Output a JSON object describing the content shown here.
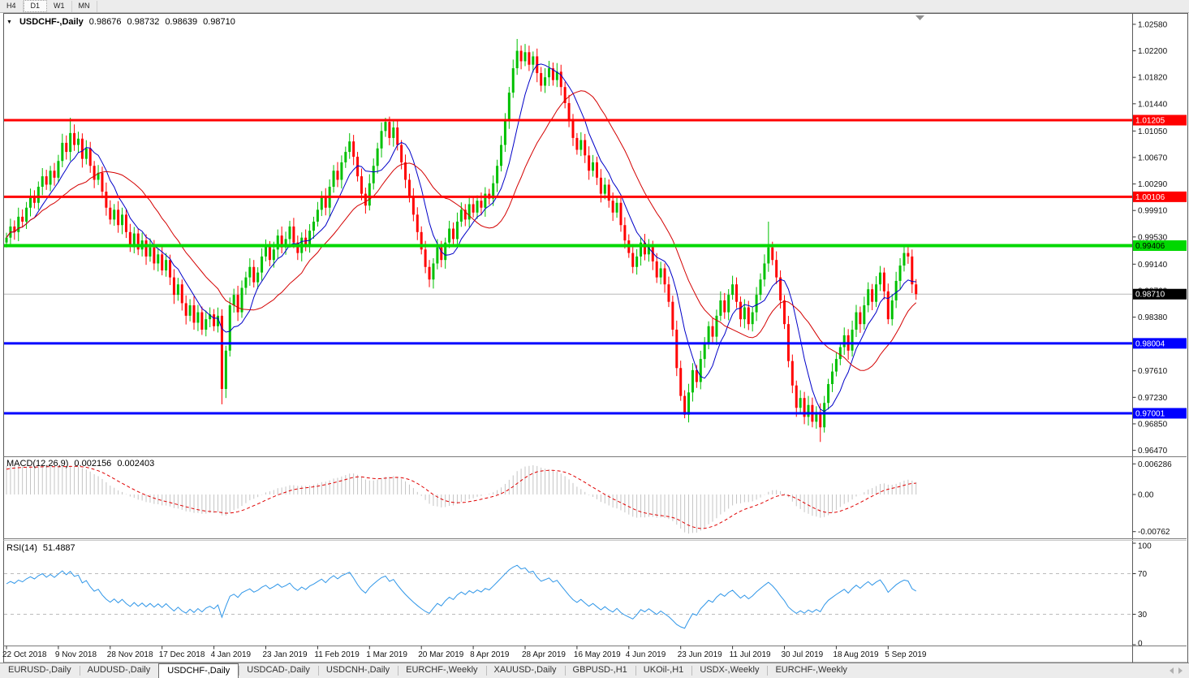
{
  "toolbar": {
    "buttons": [
      "H4",
      "D1",
      "W1",
      "MN"
    ],
    "active": "D1"
  },
  "header": {
    "symbol": "USDCHF-,Daily",
    "open": "0.98676",
    "high": "0.98732",
    "low": "0.98639",
    "close": "0.98710"
  },
  "tabs": {
    "items": [
      "EURUSD-,Daily",
      "AUDUSD-,Daily",
      "USDCHF-,Daily",
      "USDCAD-,Daily",
      "USDCNH-,Daily",
      "EURCHF-,Weekly",
      "XAUUSD-,Daily",
      "GBPUSD-,H1",
      "UKOil-,H1",
      "USDX-,Weekly",
      "EURCHF-,Weekly"
    ],
    "active": "USDCHF-,Daily"
  },
  "chart_data": {
    "type": "candlestick",
    "symbol": "USDCHF",
    "timeframe": "Daily",
    "displayed_ohlc": {
      "open": "0.98676",
      "high": "0.98732",
      "low": "0.98639",
      "close": "0.98710"
    },
    "x_labels": [
      "22 Oct 2018",
      "9 Nov 2018",
      "28 Nov 2018",
      "17 Dec 2018",
      "4 Jan 2019",
      "23 Jan 2019",
      "11 Feb 2019",
      "1 Mar 2019",
      "20 Mar 2019",
      "8 Apr 2019",
      "28 Apr 2019",
      "16 May 2019",
      "4 Jun 2019",
      "23 Jun 2019",
      "11 Jul 2019",
      "30 Jul 2019",
      "18 Aug 2019",
      "5 Sep 2019"
    ],
    "price_ticks": [
      "1.02580",
      "1.02200",
      "1.01820",
      "1.01440",
      "1.01050",
      "1.00670",
      "1.00290",
      "0.99910",
      "0.99530",
      "0.99140",
      "0.98760",
      "0.98380",
      "0.97610",
      "0.97230",
      "0.96850",
      "0.96470"
    ],
    "ylim": [
      0.9647,
      1.0258
    ],
    "grid": false,
    "hlines": [
      {
        "label": "1.01205",
        "price": 1.01205,
        "color": "#FF0000",
        "text_color": "#FFFFFF",
        "width": 3,
        "role": "resistance"
      },
      {
        "label": "1.00106",
        "price": 1.00106,
        "color": "#FF0000",
        "text_color": "#FFFFFF",
        "width": 3,
        "role": "resistance"
      },
      {
        "label": "0.99406",
        "price": 0.99406,
        "color": "#00D800",
        "text_color": "#000000",
        "width": 4,
        "role": "pivot"
      },
      {
        "label": "0.98004",
        "price": 0.98004,
        "color": "#0000FF",
        "text_color": "#FFFFFF",
        "width": 3,
        "role": "support"
      },
      {
        "label": "0.97001",
        "price": 0.97001,
        "color": "#0000FF",
        "text_color": "#FFFFFF",
        "width": 3,
        "role": "support"
      }
    ],
    "current_price": {
      "label": "0.98710",
      "price": 0.9871,
      "box_color": "#000000",
      "text_color": "#FFFFFF",
      "line_color": "#B8B8B8"
    },
    "candles": {
      "first_open": 0.9945,
      "closes": [
        0.9952,
        0.9968,
        0.996,
        0.9982,
        0.9975,
        0.9995,
        1.001,
        1.0002,
        1.0025,
        1.004,
        1.0028,
        1.0048,
        1.0038,
        1.0062,
        1.0088,
        1.0075,
        1.0102,
        1.0085,
        1.0094,
        1.0065,
        1.008,
        1.0055,
        1.0035,
        1.0045,
        1.0018,
        0.9995,
        0.9978,
        0.9992,
        0.997,
        0.9985,
        0.996,
        0.9942,
        0.9958,
        0.9935,
        0.9948,
        0.9925,
        0.9938,
        0.9915,
        0.9928,
        0.9905,
        0.992,
        0.9895,
        0.987,
        0.9885,
        0.9858,
        0.984,
        0.9855,
        0.983,
        0.9845,
        0.982,
        0.9835,
        0.9842,
        0.9825,
        0.984,
        0.9735,
        0.979,
        0.9855,
        0.987,
        0.9845,
        0.988,
        0.9895,
        0.991,
        0.9888,
        0.9902,
        0.9925,
        0.994,
        0.992,
        0.9935,
        0.9955,
        0.9938,
        0.995,
        0.9968,
        0.9945,
        0.993,
        0.9952,
        0.994,
        0.9962,
        0.9975,
        0.9992,
        1.001,
        0.9995,
        1.0025,
        1.0048,
        1.0035,
        1.006,
        1.0075,
        1.009,
        1.0068,
        1.004,
        1.0015,
        0.9998,
        1.003,
        1.0055,
        1.008,
        1.0105,
        1.0118,
        1.0095,
        1.011,
        1.0085,
        1.006,
        1.0035,
        1.001,
        0.9985,
        0.996,
        0.9935,
        0.991,
        0.9892,
        0.9915,
        0.9938,
        0.992,
        0.9945,
        0.9965,
        0.995,
        0.9975,
        0.9992,
        0.9978,
        1.0,
        0.9988,
        1.0005,
        0.9995,
        1.0015,
        1.0008,
        1.003,
        1.0055,
        1.0085,
        1.012,
        1.016,
        1.0195,
        1.022,
        1.0205,
        1.0218,
        1.02,
        1.0212,
        1.0188,
        1.017,
        1.0182,
        1.0195,
        1.0178,
        1.019,
        1.0168,
        1.0145,
        1.012,
        1.0095,
        1.0078,
        1.0092,
        1.007,
        1.0048,
        1.006,
        1.0038,
        1.0015,
        1.0028,
        1.0005,
        0.9988,
        1.0002,
        0.997,
        0.9948,
        0.993,
        0.991,
        0.9925,
        0.9945,
        0.9928,
        0.994,
        0.9918,
        0.9895,
        0.9908,
        0.9885,
        0.986,
        0.982,
        0.9765,
        0.9725,
        0.9698,
        0.973,
        0.9762,
        0.9745,
        0.9778,
        0.98,
        0.9825,
        0.981,
        0.984,
        0.9862,
        0.9845,
        0.987,
        0.9885,
        0.986,
        0.9835,
        0.9852,
        0.9828,
        0.9845,
        0.987,
        0.9892,
        0.9915,
        0.9938,
        0.992,
        0.9895,
        0.9862,
        0.9828,
        0.9775,
        0.974,
        0.9708,
        0.9722,
        0.9695,
        0.9712,
        0.9688,
        0.9702,
        0.968,
        0.9715,
        0.9742,
        0.976,
        0.9778,
        0.9795,
        0.9812,
        0.979,
        0.982,
        0.9845,
        0.9828,
        0.9855,
        0.9878,
        0.986,
        0.9885,
        0.9902,
        0.9875,
        0.9835,
        0.9862,
        0.989,
        0.9912,
        0.993,
        0.9925,
        0.9885,
        0.9871
      ],
      "wick_overrides": {
        "16": {
          "high": 1.0124
        },
        "54": {
          "low": 0.9713
        },
        "95": {
          "high": 1.0124
        },
        "128": {
          "high": 1.0237
        },
        "170": {
          "low": 0.9693
        },
        "191": {
          "high": 0.9975
        },
        "204": {
          "low": 0.9659
        },
        "225": {
          "high": 0.9941
        }
      }
    },
    "indicators": {
      "macd": {
        "label": "MACD(12,26,9)",
        "params": [
          12,
          26,
          9
        ],
        "value_main": "0.002156",
        "value_signal": "0.002403",
        "axis_ticks": [
          "0.006286",
          "0.00",
          "-0.00762"
        ],
        "seed": {
          "ema12": 0.9905,
          "ema26": 0.9845,
          "signal": 0.005
        }
      },
      "rsi": {
        "label": "RSI(14)",
        "period": 14,
        "value": "51.4887",
        "axis_ticks": [
          "100",
          "70",
          "30",
          "0"
        ],
        "levels": [
          70,
          30
        ],
        "seed": {
          "avg_gain": 0.0012,
          "avg_loss": 0.0008
        }
      }
    },
    "colors": {
      "up": "#00C000",
      "down": "#FF0000",
      "ma_fast": "#0000C8",
      "ma_slow": "#D40000",
      "macd_hist": "#C4C4C4",
      "macd_signal": "#E00000",
      "rsi": "#2F96E8",
      "rsi_level": "#BBBBBB",
      "axis_text": "#111111",
      "frame": "#5A5A5A"
    }
  }
}
